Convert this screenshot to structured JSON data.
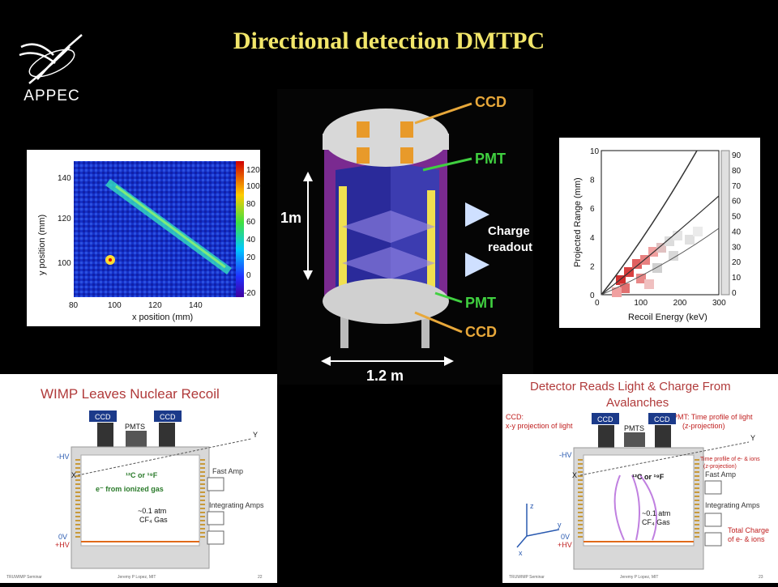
{
  "title": "Directional detection DMTPC",
  "logo": {
    "text": "APPEC"
  },
  "heatmap": {
    "xlabel": "x position (mm)",
    "ylabel": "y position (mm)",
    "xticks": [
      "80",
      "100",
      "120",
      "140"
    ],
    "yticks": [
      "140",
      "120",
      "100"
    ],
    "cbar_ticks": [
      "120",
      "100",
      "80",
      "60",
      "40",
      "20",
      "0",
      "-20"
    ]
  },
  "detector": {
    "ccd_top": "CCD",
    "pmt_top": "PMT",
    "height": "1m",
    "charge_readout_1": "Charge",
    "charge_readout_2": "readout",
    "pmt_bottom": "PMT",
    "ccd_bottom": "CCD",
    "width": "1.2 m"
  },
  "chart_data": {
    "type": "scatter",
    "xlabel": "Recoil Energy (keV)",
    "ylabel": "Projected Range (mm)",
    "xlim": [
      0,
      300
    ],
    "ylim": [
      0,
      10
    ],
    "xticks": [
      "0",
      "100",
      "200",
      "300"
    ],
    "yticks": [
      "0",
      "2",
      "4",
      "6",
      "8",
      "10"
    ],
    "cbar_ticks": [
      "90",
      "80",
      "70",
      "60",
      "50",
      "40",
      "30",
      "20",
      "10",
      "0"
    ]
  },
  "slide_left": {
    "title": "WIMP Leaves Nuclear Recoil",
    "ccd1": "CCD",
    "pmts": "PMTS",
    "ccd2": "CCD",
    "minus_hv": "-HV",
    "x_label": "X",
    "y_label": "Y",
    "recoil": "¹²C or ¹⁹F",
    "electrons": "e⁻ from ionized gas",
    "fast_amp": "Fast Amp",
    "integrating": "Integrating Amps",
    "gas1": "~0.1 atm",
    "gas2": "CF₄ Gas",
    "zero_v": "0V",
    "plus_hv": "+HV",
    "footer_left": "TRUWIMP Seminar",
    "footer_mid": "Jeremy P Lopez, MIT",
    "page": "22"
  },
  "slide_right": {
    "title1": "Detector Reads Light & Charge From",
    "title2": "Avalanches",
    "ccd_note1": "CCD:",
    "ccd_note2": "x-y projection of light",
    "pmt_note1": "PMT: Time profile of light",
    "pmt_note2": "(z-projection)",
    "ccd1": "CCD",
    "pmts": "PMTS",
    "ccd2": "CCD",
    "minus_hv": "-HV",
    "x_label": "X",
    "y_label": "Y",
    "time_profile1": "Time profile of e- & ions",
    "time_profile2": "(z-projection)",
    "recoil": "¹²C or ¹⁹F",
    "fast_amp": "Fast Amp",
    "integrating": "Integrating Amps",
    "gas1": "~0.1 atm",
    "gas2": "CF₄ Gas",
    "total1": "Total Charge",
    "total2": "of e- & ions",
    "zero_v": "0V",
    "plus_hv": "+HV",
    "axis_z": "z",
    "axis_y": "y",
    "axis_x": "x",
    "footer_left": "TRUWIMP Seminar",
    "footer_mid": "Jeremy P Lopez, MIT",
    "page": "23"
  }
}
